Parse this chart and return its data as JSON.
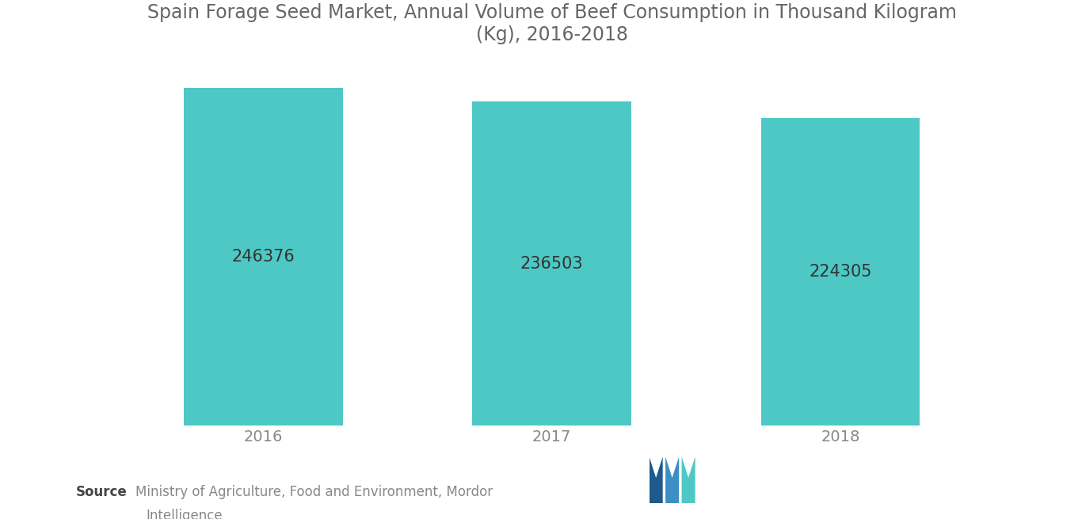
{
  "title": "Spain Forage Seed Market, Annual Volume of Beef Consumption in Thousand Kilogram\n(Kg), 2016-2018",
  "categories": [
    "2016",
    "2017",
    "2018"
  ],
  "values": [
    246376,
    236503,
    224305
  ],
  "bar_color": "#4DC8C4",
  "label_color": "#333333",
  "title_color": "#666666",
  "background_color": "#ffffff",
  "source_bold": "Source",
  "source_normal": " Ministry of Agriculture, Food and Environment, Mordor\n            Intelligence",
  "source_color": "#888888",
  "title_fontsize": 17,
  "label_fontsize": 15,
  "tick_fontsize": 14,
  "ylim_min": 0,
  "ylim_max": 265000,
  "bar_width": 0.55,
  "logo_teal": "#4DC8C4",
  "logo_blue": "#3B8FC4",
  "logo_navy": "#1E5A8C"
}
